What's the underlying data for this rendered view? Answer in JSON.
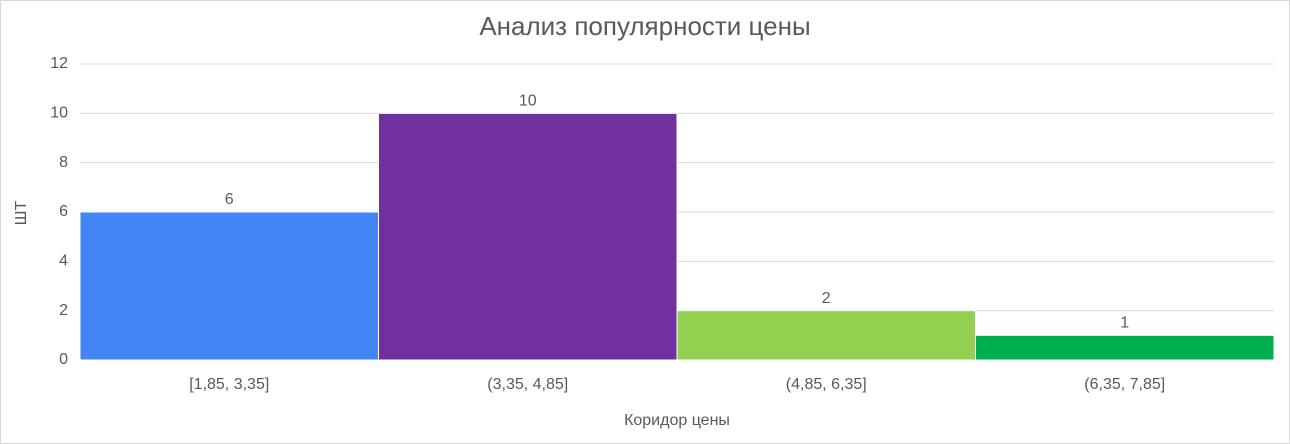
{
  "chart_data": {
    "type": "bar",
    "title": "Анализ популярности цены",
    "x_label": "Коридор цены",
    "y_label": "ШТ",
    "categories": [
      "[1,85, 3,35]",
      "(3,35, 4,85]",
      "(4,85, 6,35]",
      "(6,35, 7,85]"
    ],
    "values": [
      6,
      10,
      2,
      1
    ],
    "colors": [
      "#4285f4",
      "#7030a0",
      "#92d050",
      "#00b050"
    ],
    "ylim": [
      0,
      12
    ],
    "yticks": [
      0,
      2,
      4,
      6,
      8,
      10,
      12
    ],
    "grid": true
  }
}
